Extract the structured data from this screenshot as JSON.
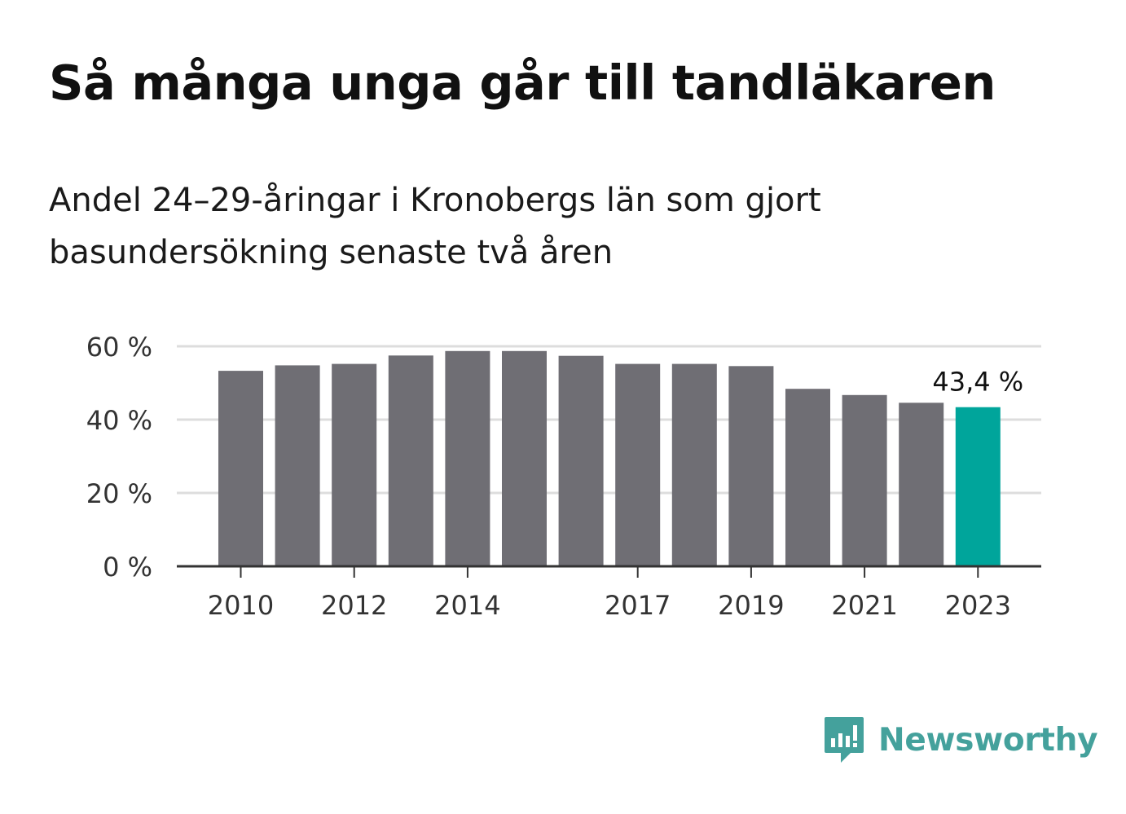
{
  "header": {
    "title": "Så många unga går till tandläkaren",
    "subtitle": "Andel 24–29-åringar i Kronobergs län som gjort basundersökning senaste två åren"
  },
  "chart_data": {
    "type": "bar",
    "categories": [
      "2010",
      "2011",
      "2012",
      "2013",
      "2014",
      "2015",
      "2016",
      "2017",
      "2018",
      "2019",
      "2020",
      "2021",
      "2022",
      "2023"
    ],
    "values": [
      53.3,
      54.8,
      55.2,
      57.5,
      58.7,
      58.7,
      57.4,
      55.2,
      55.2,
      54.6,
      48.4,
      46.7,
      44.6,
      43.4
    ],
    "x_tick_labels": [
      "2010",
      "2012",
      "2014",
      "2017",
      "2019",
      "2021",
      "2023"
    ],
    "y_ticks": [
      {
        "value": 0,
        "label": "0 %"
      },
      {
        "value": 20,
        "label": "20 %"
      },
      {
        "value": 40,
        "label": "40 %"
      },
      {
        "value": 60,
        "label": "60 %"
      }
    ],
    "ylim": [
      0,
      60
    ],
    "highlight_category": "2023",
    "data_labels": [
      {
        "category": "2023",
        "label": "43,4 %"
      }
    ],
    "colors": {
      "bar": "#6f6e74",
      "highlight": "#00a59b",
      "grid": "#dddddd",
      "axis": "#333333"
    },
    "xlabel": "",
    "ylabel": "",
    "grid": true,
    "legend": "none"
  },
  "brand": {
    "name": "Newsworthy",
    "icon": "newsworthy-logo-icon",
    "color": "#44a19c"
  }
}
